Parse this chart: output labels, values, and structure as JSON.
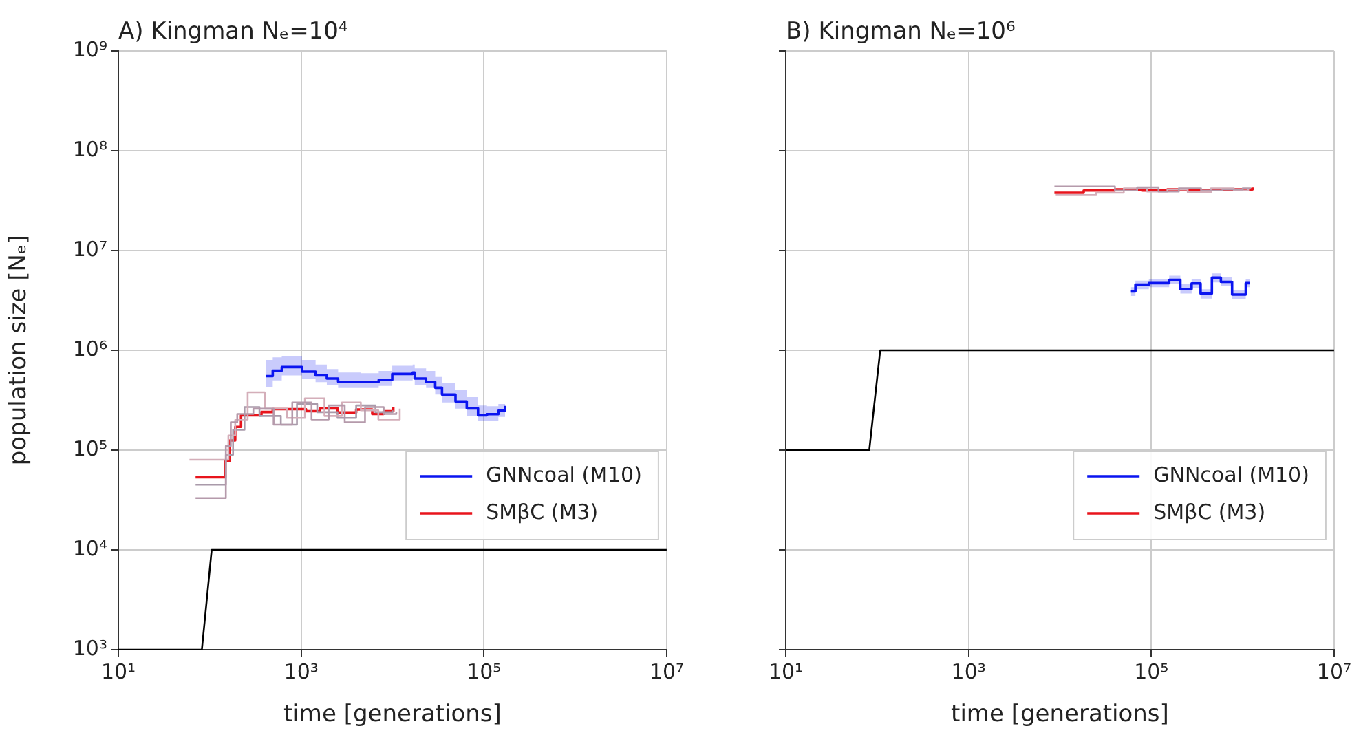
{
  "chart_data": [
    {
      "type": "step",
      "title": "A) Kingman Nₑ=10⁴",
      "xlabel": "time [generations]",
      "ylabel": "population size [Nₑ]",
      "log": "xy",
      "grid": true,
      "legend": "bottom right",
      "xlim": [
        10,
        10000000
      ],
      "xticks": [
        {
          "value": 10,
          "label": "10¹"
        },
        {
          "value": 1000,
          "label": "10³"
        },
        {
          "value": 100000,
          "label": "10⁵"
        },
        {
          "value": 10000000,
          "label": "10⁷"
        }
      ],
      "ylim": [
        1000,
        1000000000
      ],
      "yticks": [
        {
          "value": 1000,
          "label": "10³"
        },
        {
          "value": 10000,
          "label": "10⁴"
        },
        {
          "value": 100000,
          "label": "10⁵"
        },
        {
          "value": 1000000,
          "label": "10⁶"
        },
        {
          "value": 10000000,
          "label": "10⁷"
        },
        {
          "value": 100000000,
          "label": "10⁸"
        },
        {
          "value": 1000000000,
          "label": "10⁹"
        }
      ],
      "series": [
        {
          "type": "step",
          "color": "#b59aab",
          "x": [
            70,
            150,
            170,
            200,
            300,
            500,
            800,
            1300,
            2000,
            3000,
            5000,
            8000,
            11000
          ],
          "values": [
            33000,
            110000,
            190000,
            230000,
            260000,
            180000,
            300000,
            200000,
            280000,
            190000,
            270000,
            230000,
            240000
          ]
        },
        {
          "type": "step",
          "color": "#d4aeb9",
          "x": [
            60,
            140,
            160,
            190,
            260,
            400,
            700,
            1100,
            1800,
            2800,
            4500,
            7000,
            12000
          ],
          "values": [
            80000,
            80000,
            140000,
            200000,
            380000,
            260000,
            210000,
            330000,
            220000,
            300000,
            250000,
            200000,
            260000
          ]
        },
        {
          "type": "step",
          "color": "#a99aaa",
          "x": [
            70,
            120,
            150,
            180,
            240,
            350,
            600,
            900,
            1500,
            2500,
            4000,
            6500,
            10000
          ],
          "values": [
            45000,
            45000,
            90000,
            160000,
            270000,
            220000,
            180000,
            290000,
            240000,
            210000,
            280000,
            240000,
            250000
          ]
        },
        {
          "type": "step",
          "name": "SMβC (M3)",
          "color": "#e8141c",
          "x": [
            70,
            148,
            166,
            190,
            220,
            293,
            368,
            489,
            1130,
            1600,
            2500,
            4000,
            6000,
            8000,
            10200
          ],
          "values": [
            53500,
            77700,
            125000,
            171000,
            223000,
            223000,
            241000,
            257000,
            245000,
            262000,
            238000,
            255000,
            230000,
            245000,
            270000
          ]
        },
        {
          "type": "step",
          "name": "GNNcoal (M10)",
          "color": "#0a14f0",
          "x": [
            412,
            489,
            614,
            1023,
            1439,
            1910,
            2540,
            4490,
            7060,
            9930,
            16600,
            17500,
            23300,
            29300,
            34800,
            48900,
            64900,
            86300,
            108000,
            144000,
            171000
          ],
          "values": [
            551000,
            625000,
            679000,
            611000,
            561000,
            521000,
            484000,
            484000,
            505000,
            579000,
            598000,
            521000,
            484000,
            422000,
            360000,
            307000,
            262000,
            223000,
            229000,
            248000,
            277000
          ],
          "upper": [
            800000,
            850000,
            880000,
            800000,
            720000,
            650000,
            600000,
            590000,
            620000,
            700000,
            720000,
            660000,
            620000,
            540000,
            470000,
            400000,
            340000,
            280000,
            275000,
            290000,
            300000
          ],
          "lower": [
            430000,
            500000,
            560000,
            520000,
            480000,
            450000,
            420000,
            420000,
            440000,
            500000,
            520000,
            450000,
            420000,
            360000,
            300000,
            260000,
            220000,
            195000,
            195000,
            215000,
            255000
          ]
        },
        {
          "type": "line",
          "color": "#000000",
          "x": [
            10,
            82,
            105,
            10000000
          ],
          "values": [
            1000,
            1000,
            10000,
            10000
          ]
        }
      ]
    },
    {
      "type": "step",
      "title": "B) Kingman Nₑ=10⁶",
      "xlabel": "time [generations]",
      "log": "xy",
      "grid": true,
      "legend": "bottom right",
      "tick_labels": "x",
      "xlim": [
        10,
        10000000
      ],
      "xticks": [
        {
          "value": 10,
          "label": "10¹"
        },
        {
          "value": 1000,
          "label": "10³"
        },
        {
          "value": 100000,
          "label": "10⁵"
        },
        {
          "value": 10000000,
          "label": "10⁷"
        }
      ],
      "ylim": [
        1000,
        1000000000
      ],
      "yticks": [
        1000,
        10000,
        100000,
        1000000,
        10000000,
        100000000,
        1000000000
      ],
      "series": [
        {
          "type": "step",
          "color": "#b59aab",
          "x": [
            8700,
            20000,
            40000,
            70000,
            120000,
            200000,
            350000,
            600000,
            1000000,
            1200000
          ],
          "values": [
            44000000,
            44000000,
            40000000,
            43000000,
            39000000,
            42000000,
            40000000,
            41000000,
            42000000,
            43000000
          ]
        },
        {
          "type": "step",
          "color": "#d4aeb9",
          "x": [
            9000,
            25000,
            50000,
            90000,
            150000,
            250000,
            450000,
            800000,
            1150000
          ],
          "values": [
            36000000,
            38000000,
            42000000,
            39000000,
            41000000,
            38500000,
            42000000,
            40000000,
            42000000
          ]
        },
        {
          "type": "step",
          "name": "SMβC (M3)",
          "color": "#e8141c",
          "x": [
            8700,
            18200,
            40000,
            80000,
            150000,
            300000,
            600000,
            1280000
          ],
          "values": [
            38000000,
            40000000,
            41000000,
            40000000,
            41000000,
            40500000,
            41000000,
            43000000
          ]
        },
        {
          "type": "step",
          "name": "GNNcoal (M10)",
          "color": "#0a14f0",
          "x": [
            59800,
            67000,
            94000,
            157000,
            208000,
            276000,
            346000,
            460000,
            577000,
            766000,
            1080000,
            1200000
          ],
          "values": [
            3890000,
            4560000,
            4710000,
            5080000,
            4110000,
            4680000,
            3700000,
            5350000,
            4850000,
            3620000,
            4710000,
            4710000
          ],
          "upper": [
            4300000,
            5000000,
            5200000,
            5600000,
            4600000,
            5200000,
            4100000,
            5900000,
            5400000,
            4000000,
            5200000,
            5200000
          ],
          "lower": [
            3500000,
            4100000,
            4300000,
            4600000,
            3700000,
            4200000,
            3300000,
            4800000,
            4400000,
            3250000,
            4300000,
            4300000
          ]
        },
        {
          "type": "line",
          "color": "#000000",
          "x": [
            10,
            82,
            108,
            10000000
          ],
          "values": [
            100000,
            100000,
            1000000,
            1000000
          ]
        }
      ]
    }
  ]
}
